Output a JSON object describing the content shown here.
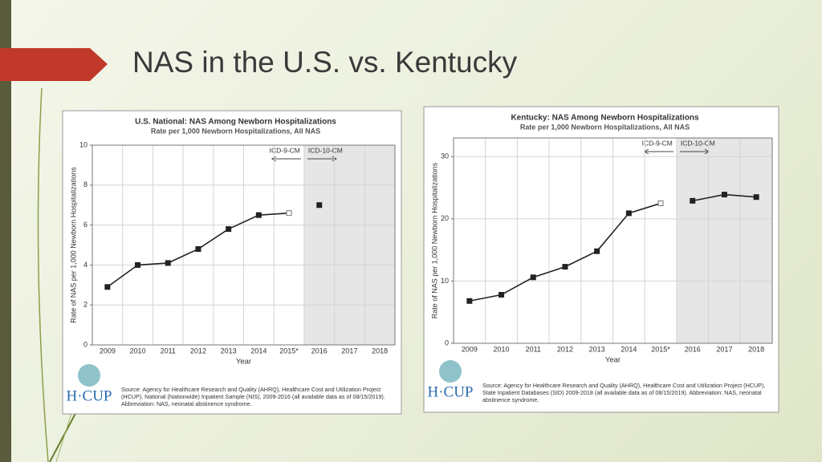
{
  "slide": {
    "title": "NAS in the U.S. vs. Kentucky"
  },
  "chart_data": [
    {
      "type": "line",
      "title": "U.S. National: NAS Among Newborn Hospitalizations",
      "subtitle": "Rate per 1,000 Newborn Hospitalizations, All NAS",
      "ylabel": "Rate of NAS per 1,000 Newborn Hospitalizations",
      "xlabel": "Year",
      "categories": [
        "2009",
        "2010",
        "2011",
        "2012",
        "2013",
        "2014",
        "2015*",
        "2016",
        "2017",
        "2018"
      ],
      "series": [
        {
          "name": "ICD-9-CM",
          "color": "#222222",
          "open_last": true,
          "values": [
            2.9,
            4.0,
            4.1,
            4.8,
            5.8,
            6.5,
            6.6,
            null,
            null,
            null
          ]
        },
        {
          "name": "ICD-10-CM",
          "color": "#222222",
          "shaded": true,
          "values": [
            null,
            null,
            null,
            null,
            null,
            null,
            null,
            7.0,
            null,
            null
          ]
        }
      ],
      "ylim": [
        0,
        10
      ],
      "yticks": [
        0,
        2,
        4,
        6,
        8,
        10
      ],
      "grid": true,
      "logo": "H·CUP",
      "source": "Source: Agency for Healthcare Research and Quality (AHRQ), Healthcare Cost and Utilization Project (HCUP), National (Nationwide) Inpatient Sample (NIS), 2009-2016 (all available data as of 08/15/2019). Abbreviation: NAS, neonatal abstinence syndrome."
    },
    {
      "type": "line",
      "title": "Kentucky: NAS Among Newborn Hospitalizations",
      "subtitle": "Rate per 1,000 Newborn Hospitalizations, All NAS",
      "ylabel": "Rate of NAS per 1,000 Newborn Hospitalizations",
      "xlabel": "Year",
      "categories": [
        "2009",
        "2010",
        "2011",
        "2012",
        "2013",
        "2014",
        "2015*",
        "2016",
        "2017",
        "2018"
      ],
      "series": [
        {
          "name": "ICD-9-CM",
          "color": "#222222",
          "open_last": true,
          "values": [
            6.8,
            7.8,
            10.6,
            12.3,
            14.8,
            20.9,
            22.5,
            null,
            null,
            null
          ]
        },
        {
          "name": "ICD-10-CM",
          "color": "#222222",
          "shaded": true,
          "values": [
            null,
            null,
            null,
            null,
            null,
            null,
            null,
            22.9,
            23.9,
            23.5
          ]
        }
      ],
      "ylim": [
        0,
        33
      ],
      "yticks": [
        0,
        10,
        20,
        30
      ],
      "grid": true,
      "logo": "H·CUP",
      "source": "Source: Agency for Healthcare Research and Quality (AHRQ), Healthcare Cost and Utilization Project (HCUP), State Inpatient Databases (SID) 2009-2018 (all available data as of 08/15/2019). Abbreviation: NAS, neonatal abstinence syndrome."
    }
  ]
}
